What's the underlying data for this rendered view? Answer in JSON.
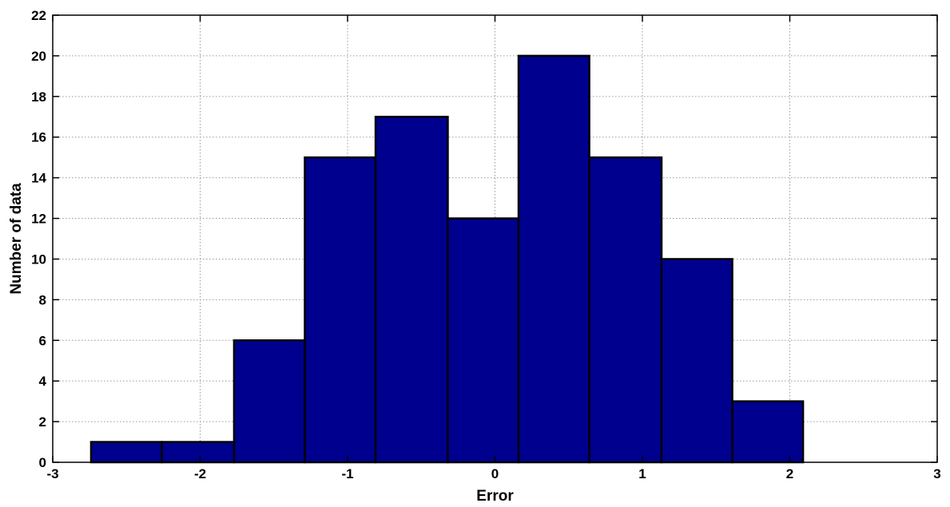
{
  "chart_data": {
    "type": "bar",
    "title": "",
    "xlabel": "Error",
    "ylabel": "Number of data",
    "xlim": [
      -3,
      3
    ],
    "ylim": [
      0,
      22
    ],
    "grid": true,
    "x_ticks": [
      -3,
      -2,
      -1,
      0,
      1,
      2,
      3
    ],
    "y_ticks": [
      0,
      2,
      4,
      6,
      8,
      10,
      12,
      14,
      16,
      18,
      20,
      22
    ],
    "bin_edges": [
      -2.74,
      -2.26,
      -1.77,
      -1.29,
      -0.81,
      -0.32,
      0.16,
      0.64,
      1.13,
      1.61,
      2.09
    ],
    "values": [
      1,
      1,
      6,
      15,
      17,
      12,
      20,
      15,
      10,
      3
    ],
    "bar_color": "#00008f",
    "edge_color": "#000000"
  }
}
